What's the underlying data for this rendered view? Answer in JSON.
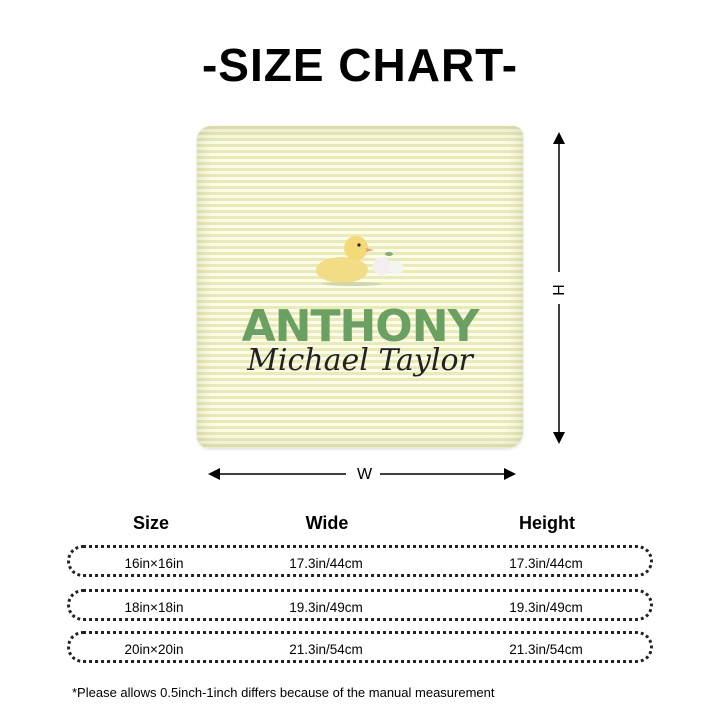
{
  "title": "-SIZE CHART-",
  "product": {
    "name": "ANTHONY",
    "subname": "Michael Taylor",
    "stripe_color": "#e9ebb0",
    "name_color": "#6aa062"
  },
  "dimensions": {
    "height_label": "H",
    "width_label": "W"
  },
  "table": {
    "headers": [
      "Size",
      "Wide",
      "Height"
    ],
    "rows": [
      [
        "16in×16in",
        "17.3in/44cm",
        "17.3in/44cm"
      ],
      [
        "18in×18in",
        "19.3in/49cm",
        "19.3in/49cm"
      ],
      [
        "20in×20in",
        "21.3in/54cm",
        "21.3in/54cm"
      ]
    ]
  },
  "note": "*Please allows 0.5inch-1inch differs because of the manual measurement"
}
